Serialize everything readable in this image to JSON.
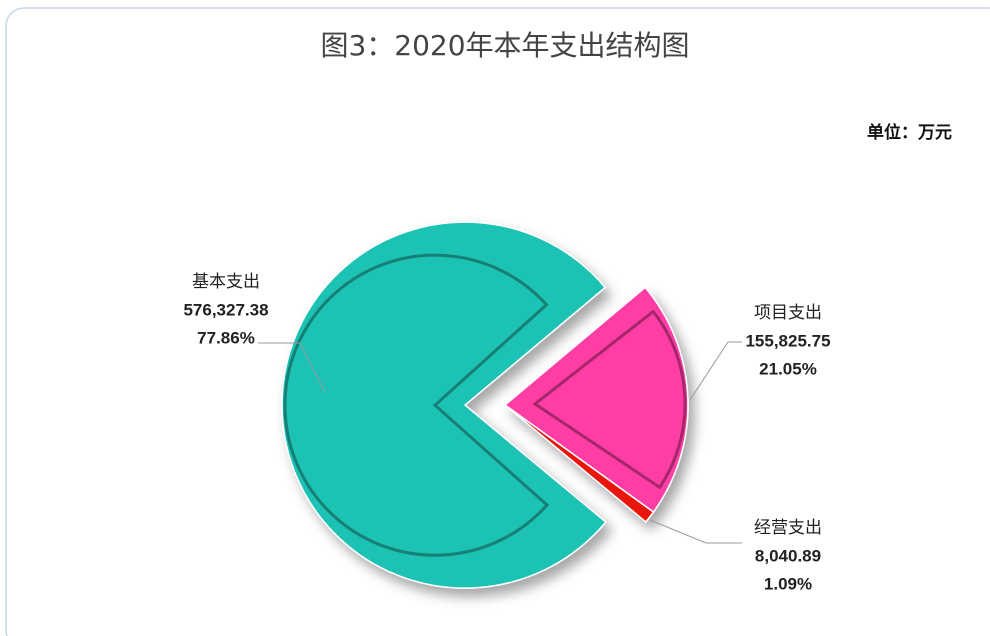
{
  "chart_data": {
    "type": "pie",
    "title": "图3：2020年本年支出结构图",
    "unit": "单位：万元",
    "categories": [
      "基本支出",
      "项目支出",
      "经营支出"
    ],
    "values": [
      576327.38,
      155825.75,
      8040.89
    ],
    "value_labels": [
      "576,327.38",
      "155,825.75",
      "8,040.89"
    ],
    "percents": [
      77.86,
      21.05,
      1.09
    ],
    "percent_labels": [
      "77.86%",
      "21.05%",
      "1.09%"
    ],
    "colors": [
      "#1fc3b5",
      "#ff3ea5",
      "#e8180e"
    ]
  }
}
